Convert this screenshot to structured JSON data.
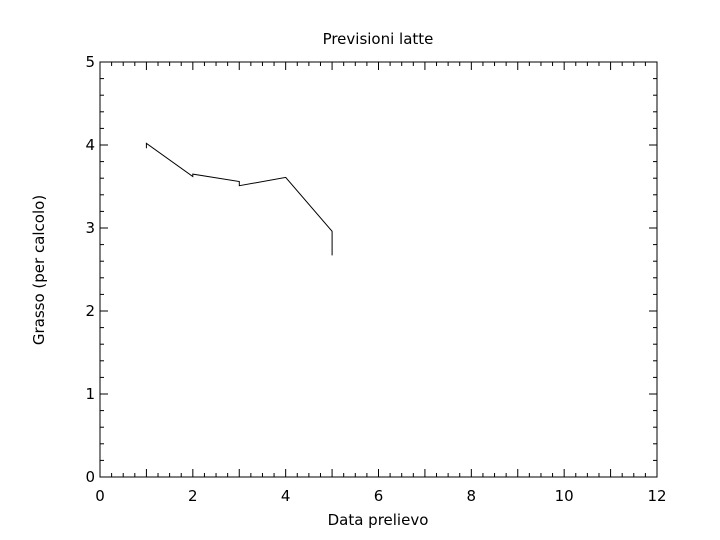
{
  "chart_data": {
    "type": "line",
    "title": "Previsioni latte",
    "xlabel": "Data prelievo",
    "ylabel": "Grasso (per calcolo)",
    "xlim": [
      0,
      12
    ],
    "ylim": [
      0,
      5
    ],
    "xticks": [
      "0",
      "2",
      "4",
      "6",
      "8",
      "10",
      "12"
    ],
    "yticks": [
      "0",
      "1",
      "2",
      "3",
      "4",
      "5"
    ],
    "grid": false,
    "series": [
      {
        "x": [
          1.0,
          1.0,
          2.0,
          2.0,
          3.0,
          3.0,
          4.0,
          5.0,
          5.0
        ],
        "y": [
          3.96,
          4.02,
          3.62,
          3.65,
          3.56,
          3.51,
          3.61,
          2.96,
          2.67
        ]
      }
    ]
  }
}
